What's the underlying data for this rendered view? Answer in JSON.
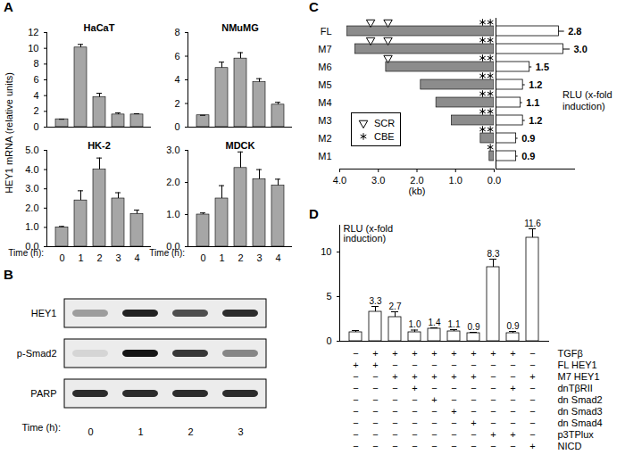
{
  "chart_data": [
    {
      "panel": "A",
      "type": "bar",
      "title": "HaCaT",
      "ylabel": "HEY1 mRNA (relative units)",
      "categories": [
        0,
        1,
        2,
        3,
        4
      ],
      "values": [
        1.0,
        10.1,
        3.8,
        1.6,
        1.6
      ],
      "errors": [
        0,
        0.4,
        0.5,
        0.2,
        0.1
      ],
      "color": "#a6a6a6",
      "ylim": [
        0,
        12
      ],
      "yticks": [
        0,
        2,
        4,
        6,
        8,
        10,
        12
      ],
      "tick_labels": "y"
    },
    {
      "panel": "A",
      "type": "bar",
      "title": "NMuMG",
      "categories": [
        0,
        1,
        2,
        3,
        4
      ],
      "values": [
        1.0,
        5.0,
        5.8,
        3.8,
        1.9
      ],
      "errors": [
        0,
        0.5,
        0.5,
        0.3,
        0.2
      ],
      "color": "#a6a6a6",
      "ylim": [
        0,
        8
      ],
      "yticks": [
        0,
        2,
        4,
        6,
        8
      ],
      "tick_labels": "y"
    },
    {
      "panel": "A",
      "type": "bar",
      "title": "HK-2",
      "xlabel": "Time (h):",
      "categories": [
        0,
        1,
        2,
        3,
        4
      ],
      "values": [
        1.0,
        2.4,
        4.0,
        2.5,
        1.7
      ],
      "errors": [
        0.05,
        0.5,
        0.6,
        0.3,
        0.2
      ],
      "color": "#a6a6a6",
      "ylim": [
        0,
        5
      ],
      "yticks": [
        0,
        1,
        2,
        3,
        4,
        5
      ]
    },
    {
      "panel": "A",
      "type": "bar",
      "title": "MDCK",
      "xlabel": "Time (h):",
      "categories": [
        0,
        1,
        2,
        3,
        4
      ],
      "values": [
        1.0,
        1.5,
        2.45,
        2.1,
        1.9
      ],
      "errors": [
        0.05,
        0.4,
        0.5,
        0.3,
        0.2
      ],
      "color": "#a6a6a6",
      "ylim": [
        0,
        3
      ],
      "yticks": [
        0,
        1,
        2,
        3
      ]
    },
    {
      "panel": "C",
      "type": "bar",
      "orientation": "horizontal",
      "categories": [
        "FL",
        "M7",
        "M6",
        "M5",
        "M4",
        "M3",
        "M2",
        "M1"
      ],
      "construct_length_kb": [
        3.8,
        3.6,
        2.8,
        1.9,
        1.5,
        1.1,
        0.35,
        0.12
      ],
      "construct_color": "#8c8c8c",
      "xlabel": "(kb)",
      "xlim": [
        4,
        0
      ],
      "xticks": [
        4,
        3,
        2,
        1,
        0
      ],
      "sites": [
        {
          "name": "SCR",
          "marker": "triangle",
          "positions_kb": [
            3.2,
            2.75
          ]
        },
        {
          "name": "CBE",
          "marker": "asterisk",
          "positions_kb": [
            0.3,
            0.1
          ]
        }
      ],
      "values_label": "RLU (x-fold induction)",
      "values": [
        2.8,
        3.0,
        1.5,
        1.2,
        1.1,
        1.2,
        0.9,
        0.9
      ],
      "value_labels": [
        "2.8",
        "3.0",
        "1.5",
        "1.2",
        "1.1",
        "1.2",
        "0.9",
        "0.9"
      ],
      "errors": [
        0.25,
        0.3,
        0.1,
        0.1,
        0.08,
        0.1,
        0.08,
        0.08
      ],
      "values_xlim": [
        0,
        3.5
      ],
      "color": "#ffffff",
      "data_labels": true
    },
    {
      "panel": "D",
      "type": "bar",
      "ylabel": "RLU (x-fold induction)",
      "categories": [
        null,
        null,
        null,
        null,
        null,
        null,
        null,
        null,
        null,
        null
      ],
      "values": [
        1.0,
        3.3,
        2.7,
        1.0,
        1.4,
        1.1,
        0.9,
        8.3,
        0.9,
        11.6
      ],
      "value_labels": [
        null,
        "3.3",
        "2.7",
        "1.0",
        "1.4",
        "1.1",
        "0.9",
        "8.3",
        "0.9",
        "11.6"
      ],
      "errors": [
        0.2,
        0.6,
        0.6,
        0.25,
        0.1,
        0.2,
        0.1,
        0.9,
        0.2,
        1.0
      ],
      "color": "#ffffff",
      "ylim": [
        0,
        13
      ],
      "yticks": [
        0,
        5,
        10
      ],
      "data_labels": true,
      "conditions": [
        {
          "name": "TGFβ",
          "values": [
            "−",
            "+",
            "+",
            "+",
            "+",
            "+",
            "+",
            "+",
            "+",
            "−"
          ]
        },
        {
          "name": "FL HEY1",
          "values": [
            "+",
            "+",
            "−",
            "−",
            "−",
            "−",
            "−",
            "−",
            "−",
            "−"
          ]
        },
        {
          "name": "M7 HEY1",
          "values": [
            "−",
            "−",
            "+",
            "+",
            "+",
            "+",
            "+",
            "−",
            "−",
            "+"
          ]
        },
        {
          "name": "dnTβRII",
          "values": [
            "−",
            "−",
            "−",
            "+",
            "−",
            "−",
            "−",
            "−",
            "+",
            "−"
          ]
        },
        {
          "name": "dn Smad2",
          "values": [
            "−",
            "−",
            "−",
            "−",
            "+",
            "−",
            "−",
            "−",
            "−",
            "−"
          ]
        },
        {
          "name": "dn Smad3",
          "values": [
            "−",
            "−",
            "−",
            "−",
            "−",
            "+",
            "−",
            "−",
            "−",
            "−"
          ]
        },
        {
          "name": "dn Smad4",
          "values": [
            "−",
            "−",
            "−",
            "−",
            "−",
            "−",
            "+",
            "−",
            "−",
            "−"
          ]
        },
        {
          "name": "p3TPlux",
          "values": [
            "−",
            "−",
            "−",
            "−",
            "−",
            "−",
            "−",
            "+",
            "+",
            "−"
          ]
        },
        {
          "name": "NICD",
          "values": [
            "−",
            "−",
            "−",
            "−",
            "−",
            "−",
            "−",
            "−",
            "−",
            "+"
          ]
        }
      ]
    }
  ],
  "blot": {
    "panel": "B",
    "rows": [
      "HEY1",
      "p-Smad2",
      "PARP"
    ],
    "lanes": [
      0,
      1,
      2,
      3
    ],
    "xlabel": "Time (h):",
    "band_intensity": [
      [
        0.35,
        0.9,
        0.7,
        0.85
      ],
      [
        0.1,
        0.95,
        0.8,
        0.45
      ],
      [
        0.85,
        0.85,
        0.85,
        0.85
      ]
    ],
    "intensity_lim": [
      0,
      1
    ]
  }
}
